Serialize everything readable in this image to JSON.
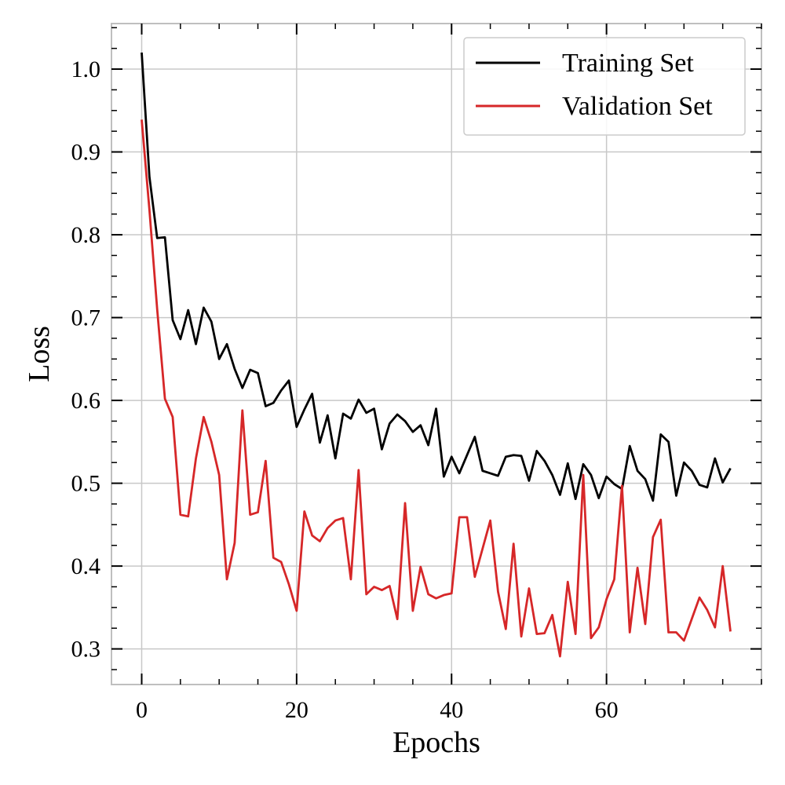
{
  "chart_data": {
    "type": "line",
    "title": "",
    "xlabel": "Epochs",
    "ylabel": "Loss",
    "xlim": [
      -3.9,
      80
    ],
    "ylim": [
      0.257,
      1.055
    ],
    "xticks": [
      0,
      20,
      40,
      60
    ],
    "xtick_labels": [
      "0",
      "20",
      "40",
      "60"
    ],
    "x_minor_step": 5,
    "yticks": [
      0.3,
      0.4,
      0.5,
      0.6,
      0.7,
      0.8,
      0.9,
      1.0
    ],
    "ytick_labels": [
      "0.3",
      "0.4",
      "0.5",
      "0.6",
      "0.7",
      "0.8",
      "0.9",
      "1.0"
    ],
    "y_minor_step": 0.025,
    "grid": true,
    "legend_position": "top-right",
    "x": [
      0,
      1,
      2,
      3,
      4,
      5,
      6,
      7,
      8,
      9,
      10,
      11,
      12,
      13,
      14,
      15,
      16,
      17,
      18,
      19,
      20,
      21,
      22,
      23,
      24,
      25,
      26,
      27,
      28,
      29,
      30,
      31,
      32,
      33,
      34,
      35,
      36,
      37,
      38,
      39,
      40,
      41,
      42,
      43,
      44,
      45,
      46,
      47,
      48,
      49,
      50,
      51,
      52,
      53,
      54,
      55,
      56,
      57,
      58,
      59,
      60,
      61,
      62,
      63,
      64,
      65,
      66,
      67,
      68,
      69,
      70,
      71,
      72,
      73,
      74,
      75,
      76
    ],
    "series": [
      {
        "name": "Training Set",
        "color": "#000000",
        "values": [
          1.02,
          0.87,
          0.796,
          0.797,
          0.697,
          0.674,
          0.709,
          0.668,
          0.712,
          0.695,
          0.65,
          0.668,
          0.638,
          0.615,
          0.637,
          0.633,
          0.593,
          0.597,
          0.612,
          0.624,
          0.568,
          0.589,
          0.608,
          0.549,
          0.582,
          0.53,
          0.584,
          0.578,
          0.601,
          0.585,
          0.59,
          0.541,
          0.572,
          0.583,
          0.575,
          0.562,
          0.57,
          0.546,
          0.59,
          0.508,
          0.532,
          0.512,
          0.534,
          0.556,
          0.515,
          0.512,
          0.509,
          0.532,
          0.534,
          0.533,
          0.503,
          0.539,
          0.527,
          0.51,
          0.486,
          0.524,
          0.481,
          0.523,
          0.51,
          0.482,
          0.508,
          0.499,
          0.493,
          0.545,
          0.515,
          0.505,
          0.479,
          0.559,
          0.55,
          0.485,
          0.525,
          0.515,
          0.498,
          0.495,
          0.53,
          0.501,
          0.518
        ]
      },
      {
        "name": "Validation Set",
        "color": "#d62728",
        "values": [
          0.939,
          0.83,
          0.71,
          0.602,
          0.58,
          0.462,
          0.46,
          0.53,
          0.58,
          0.55,
          0.51,
          0.384,
          0.428,
          0.588,
          0.462,
          0.465,
          0.527,
          0.41,
          0.405,
          0.378,
          0.346,
          0.466,
          0.437,
          0.43,
          0.446,
          0.455,
          0.458,
          0.384,
          0.516,
          0.366,
          0.375,
          0.371,
          0.376,
          0.336,
          0.476,
          0.346,
          0.399,
          0.366,
          0.361,
          0.365,
          0.367,
          0.459,
          0.459,
          0.387,
          0.421,
          0.455,
          0.369,
          0.324,
          0.427,
          0.315,
          0.373,
          0.318,
          0.319,
          0.341,
          0.291,
          0.381,
          0.318,
          0.51,
          0.313,
          0.326,
          0.36,
          0.384,
          0.497,
          0.32,
          0.398,
          0.33,
          0.435,
          0.456,
          0.32,
          0.32,
          0.31,
          0.336,
          0.362,
          0.347,
          0.326,
          0.4,
          0.321
        ]
      }
    ]
  }
}
